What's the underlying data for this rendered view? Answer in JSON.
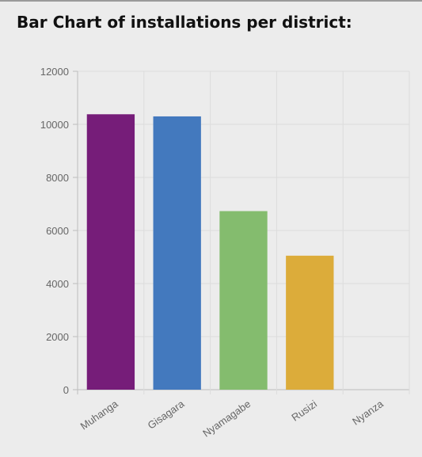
{
  "page": {
    "title": "Bar Chart of installations per district:"
  },
  "chart_data": {
    "type": "bar",
    "title": "Bar Chart of installations per district:",
    "xlabel": "",
    "ylabel": "",
    "categories": [
      "Muhanga",
      "Gisagara",
      "Nyamagabe",
      "Rusizi",
      "Nyanza"
    ],
    "values": [
      10380,
      10300,
      6730,
      5050,
      0
    ],
    "colors": [
      "#761d79",
      "#4379be",
      "#84bc6e",
      "#dcac3a",
      "#b4b4b4"
    ],
    "ylim": [
      0,
      12000
    ],
    "yticks": [
      0,
      2000,
      4000,
      6000,
      8000,
      10000,
      12000
    ],
    "grid": true,
    "legend": "none",
    "x_tick_rotation": "rotated"
  }
}
